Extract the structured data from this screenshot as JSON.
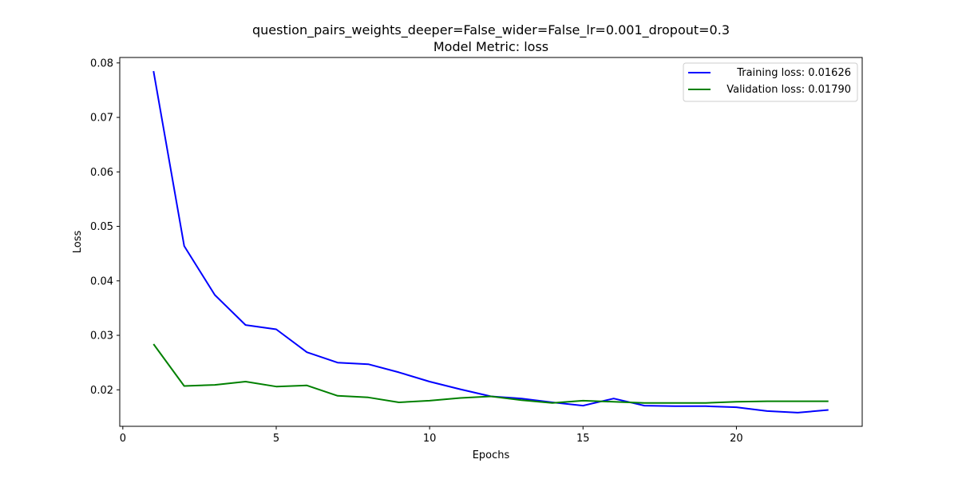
{
  "chart_data": {
    "type": "line",
    "title": "question_pairs_weights_deeper=False_wider=False_lr=0.001_dropout=0.3",
    "subtitle": "Model Metric: loss",
    "xlabel": "Epochs",
    "ylabel": "Loss",
    "xlim": [
      -0.1,
      24.1
    ],
    "ylim": [
      0.0133,
      0.081
    ],
    "xticks": [
      0,
      5,
      10,
      15,
      20
    ],
    "xtick_labels": [
      "0",
      "5",
      "10",
      "15",
      "20"
    ],
    "yticks": [
      0.02,
      0.03,
      0.04,
      0.05,
      0.06,
      0.07,
      0.08
    ],
    "ytick_labels": [
      "0.02",
      "0.03",
      "0.04",
      "0.05",
      "0.06",
      "0.07",
      "0.08"
    ],
    "grid": false,
    "legend_position": "top-right",
    "x": [
      1,
      2,
      3,
      4,
      5,
      6,
      7,
      8,
      9,
      10,
      11,
      12,
      13,
      14,
      15,
      16,
      17,
      18,
      19,
      20,
      21,
      22,
      23
    ],
    "series": [
      {
        "name": "Training loss: 0.01626",
        "color": "#0000ff",
        "values": [
          0.0785,
          0.0464,
          0.0374,
          0.0319,
          0.0311,
          0.0269,
          0.025,
          0.0247,
          0.0232,
          0.0215,
          0.0201,
          0.0188,
          0.0184,
          0.0177,
          0.0171,
          0.0184,
          0.0171,
          0.017,
          0.017,
          0.0168,
          0.0161,
          0.0158,
          0.0163
        ]
      },
      {
        "name": "Validation loss: 0.01790",
        "color": "#008000",
        "values": [
          0.0284,
          0.0207,
          0.0209,
          0.0215,
          0.0206,
          0.0208,
          0.0189,
          0.0186,
          0.0177,
          0.018,
          0.0185,
          0.0188,
          0.0181,
          0.0176,
          0.018,
          0.0178,
          0.0176,
          0.0176,
          0.0176,
          0.0178,
          0.0179,
          0.0179,
          0.0179
        ]
      }
    ]
  }
}
